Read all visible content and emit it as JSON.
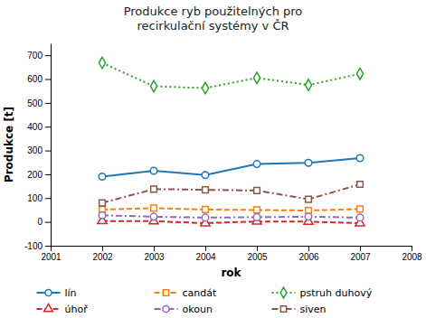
{
  "chart_data": {
    "type": "line",
    "title": "Produkce ryb použitelných pro\nrecirkulační systémy v ČR",
    "xlabel": "rok",
    "ylabel": "Produkce [t]",
    "x": [
      2002,
      2003,
      2004,
      2005,
      2006,
      2007
    ],
    "xlim": [
      2001,
      2008
    ],
    "xticks": [
      2001,
      2002,
      2003,
      2004,
      2005,
      2006,
      2007,
      2008
    ],
    "ylim": [
      -100,
      750
    ],
    "yticks": [
      -100,
      0,
      100,
      200,
      300,
      400,
      500,
      600,
      700
    ],
    "grid": false,
    "legend": "bottom",
    "series": [
      {
        "name": "lín",
        "values": [
          190,
          215,
          197,
          243,
          248,
          268
        ],
        "marker": "circle",
        "line_style": "solid"
      },
      {
        "name": "candát",
        "values": [
          52,
          58,
          52,
          50,
          48,
          54
        ],
        "marker": "square",
        "line_style": "dashed"
      },
      {
        "name": "pstruh duhový",
        "values": [
          668,
          570,
          562,
          605,
          575,
          622
        ],
        "marker": "diamond",
        "line_style": "dotted"
      },
      {
        "name": "úhoř",
        "values": [
          4,
          3,
          -5,
          2,
          1,
          -5
        ],
        "marker": "triangle",
        "line_style": "dashed"
      },
      {
        "name": "okoun",
        "values": [
          28,
          22,
          18,
          20,
          22,
          18
        ],
        "marker": "circle",
        "line_style": "dashdot"
      },
      {
        "name": "siven",
        "values": [
          80,
          138,
          135,
          132,
          95,
          158
        ],
        "marker": "square",
        "line_style": "dashdot"
      }
    ]
  }
}
